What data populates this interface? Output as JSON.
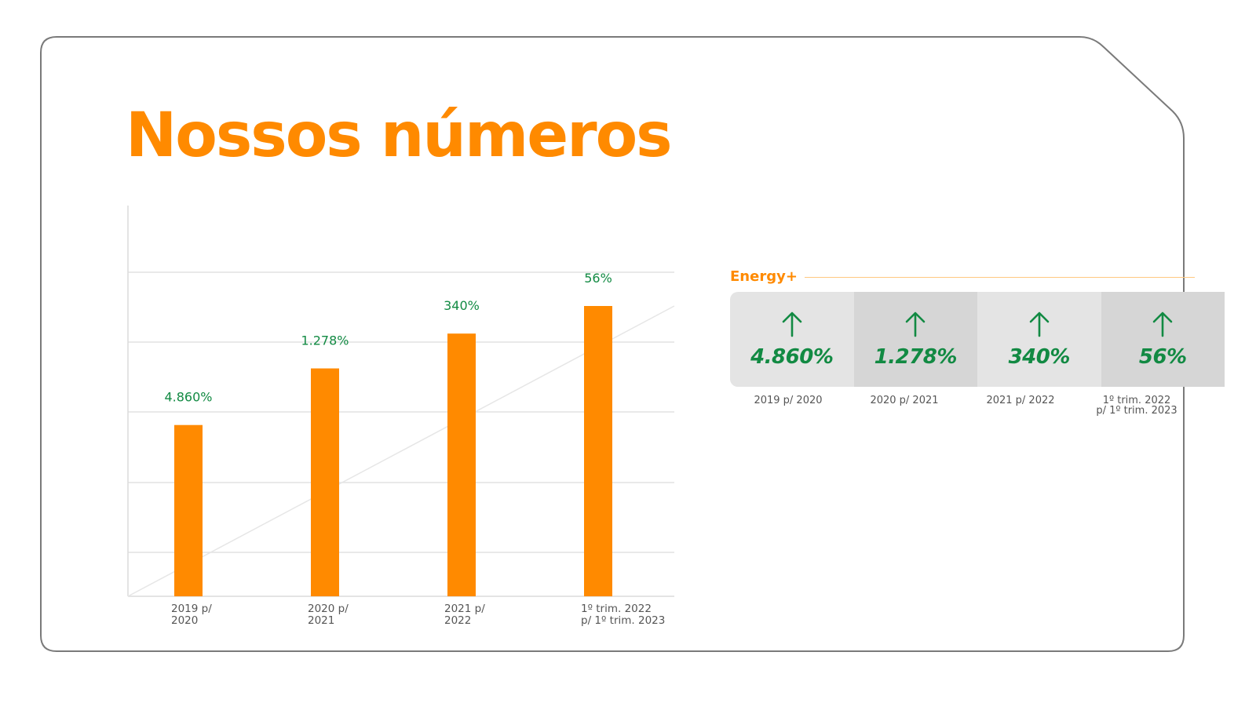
{
  "title": "Nossos números",
  "colors": {
    "accent": "#ff8a00",
    "positive": "#128a43",
    "frame": "#7a7a7a"
  },
  "chart_data": {
    "type": "bar",
    "categories": [
      "2019 p/\n2020",
      "2020 p/\n2021",
      "2021 p/\n2022",
      "1º trim. 2022\np/ 1º trim. 2023"
    ],
    "values": [
      4860,
      1278,
      340,
      56
    ],
    "value_labels": [
      "4.860%",
      "1.278%",
      "340%",
      "56%"
    ],
    "bar_color": "#ff8a00",
    "grid": true,
    "trendline": true,
    "title": "",
    "xlabel": "",
    "ylabel": ""
  },
  "energy_panel": {
    "title": "Energy+",
    "arrow_icon": "arrow-up-icon",
    "cards": [
      {
        "value": "4.860%",
        "period": "2019 p/ 2020"
      },
      {
        "value": "1.278%",
        "period": "2020 p/ 2021"
      },
      {
        "value": "340%",
        "period": "2021 p/ 2022"
      },
      {
        "value": "56%",
        "period": "1º trim. 2022\np/ 1º trim. 2023"
      }
    ]
  }
}
